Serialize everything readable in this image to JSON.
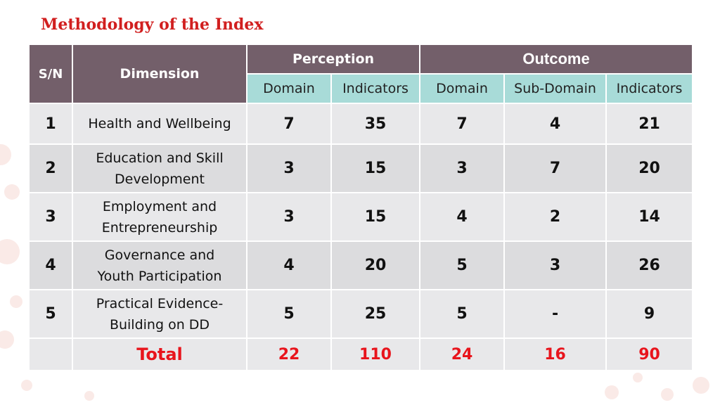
{
  "title": "Methodology of the Index",
  "headers": {
    "sn": "S/N",
    "dimension": "Dimension",
    "perception": "Perception",
    "outcome": "Outcome",
    "perception_domain": "Domain",
    "perception_indicators": "Indicators",
    "outcome_domain": "Domain",
    "outcome_subdomain": "Sub-Domain",
    "outcome_indicators": "Indicators"
  },
  "rows": [
    {
      "sn": "1",
      "dimension": "Health and Wellbeing",
      "p_domain": "7",
      "p_indicators": "35",
      "o_domain": "7",
      "o_subdomain": "4",
      "o_indicators": "21"
    },
    {
      "sn": "2",
      "dimension": "Education and Skill Development",
      "p_domain": "3",
      "p_indicators": "15",
      "o_domain": "3",
      "o_subdomain": "7",
      "o_indicators": "20"
    },
    {
      "sn": "3",
      "dimension": "Employment and Entrepreneurship",
      "p_domain": "3",
      "p_indicators": "15",
      "o_domain": "4",
      "o_subdomain": "2",
      "o_indicators": "14"
    },
    {
      "sn": "4",
      "dimension": "Governance and Youth Participation",
      "p_domain": "4",
      "p_indicators": "20",
      "o_domain": "5",
      "o_subdomain": "3",
      "o_indicators": "26"
    },
    {
      "sn": "5",
      "dimension": "Practical Evidence-Building on DD",
      "p_domain": "5",
      "p_indicators": "25",
      "o_domain": "5",
      "o_subdomain": "-",
      "o_indicators": "9"
    }
  ],
  "total": {
    "label": "Total",
    "p_domain": "22",
    "p_indicators": "110",
    "o_domain": "24",
    "o_subdomain": "16",
    "o_indicators": "90"
  },
  "colors": {
    "title": "#d11f1f",
    "header": "#735f6a",
    "subheader": "#a8dbd8",
    "total_text": "#e8141c"
  }
}
